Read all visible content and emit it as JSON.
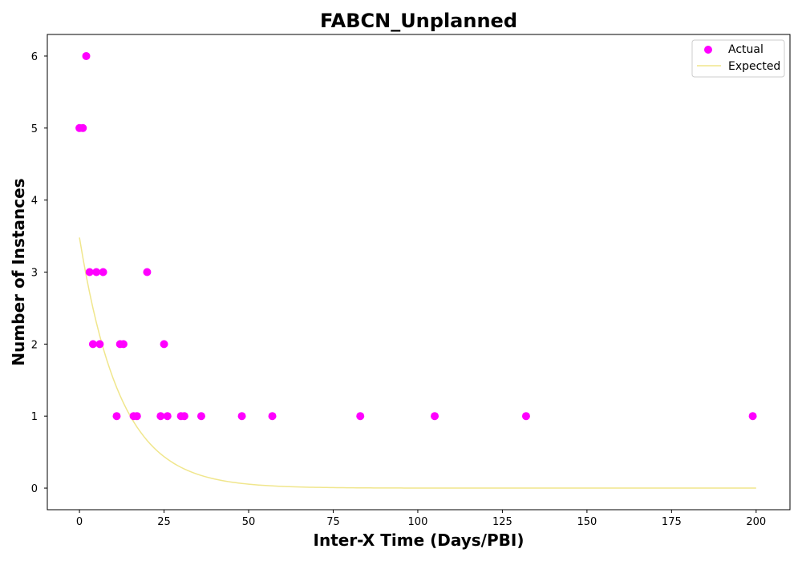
{
  "chart_data": {
    "type": "scatter",
    "title": "FABCN_Unplanned",
    "xlabel": "Inter-X Time (Days/PBI)",
    "ylabel": "Number of Instances",
    "xlim": [
      -9.5,
      210
    ],
    "ylim": [
      -0.3,
      6.3
    ],
    "xticks": [
      0,
      25,
      50,
      75,
      100,
      125,
      150,
      175,
      200
    ],
    "yticks": [
      0,
      1,
      2,
      3,
      4,
      5,
      6
    ],
    "grid": false,
    "legend": {
      "placement": "top-right",
      "entries": [
        "Actual",
        "Expected"
      ]
    },
    "series": [
      {
        "name": "Actual",
        "kind": "scatter",
        "color": "#ff00ff",
        "points": [
          [
            0,
            5
          ],
          [
            1,
            5
          ],
          [
            2,
            6
          ],
          [
            3,
            3
          ],
          [
            4,
            2
          ],
          [
            5,
            3
          ],
          [
            6,
            2
          ],
          [
            7,
            3
          ],
          [
            11,
            1
          ],
          [
            12,
            2
          ],
          [
            13,
            2
          ],
          [
            16,
            1
          ],
          [
            17,
            1
          ],
          [
            20,
            3
          ],
          [
            24,
            1
          ],
          [
            25,
            2
          ],
          [
            26,
            1
          ],
          [
            30,
            1
          ],
          [
            31,
            1
          ],
          [
            36,
            1
          ],
          [
            48,
            1
          ],
          [
            57,
            1
          ],
          [
            83,
            1
          ],
          [
            105,
            1
          ],
          [
            132,
            1
          ],
          [
            199,
            1
          ]
        ]
      },
      {
        "name": "Expected",
        "kind": "line",
        "color": "#f0e68c",
        "function": "exponential",
        "amplitude": 3.48,
        "decay_rate": 0.083,
        "x_range": [
          0,
          200
        ]
      }
    ]
  }
}
